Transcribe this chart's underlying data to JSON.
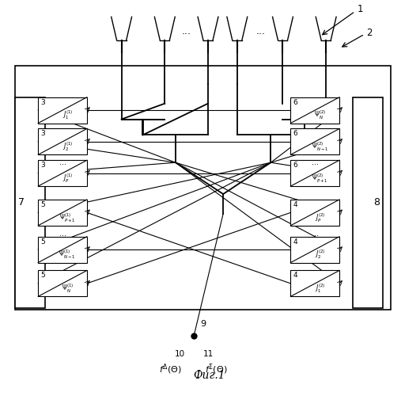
{
  "title": "Фиг.1",
  "fig_width": 5.31,
  "fig_height": 5.0,
  "bg_color": "#ffffff",
  "label1": "1",
  "label2": "2",
  "label7": "7",
  "label8": "8",
  "label9": "9",
  "label10": "10",
  "label11": "11",
  "left_blocks": [
    {
      "num": "3",
      "sub": "$J_1^{(1)}$"
    },
    {
      "num": "3",
      "sub": "$J_2^{(1)}$"
    },
    {
      "num": "3",
      "sub": "$J_P^{(1)}$"
    },
    {
      "num": "5",
      "sub": "$\\Psi_{P+1}^{(1)}$"
    },
    {
      "num": "5",
      "sub": "$\\Psi_{N-1}^{(1)}$"
    },
    {
      "num": "5",
      "sub": "$\\Psi_N^{(1)}$"
    }
  ],
  "right_blocks": [
    {
      "num": "6",
      "sub": "$\\Psi_N^{(2)}$"
    },
    {
      "num": "6",
      "sub": "$\\Psi_{N-1}^{(2)}$"
    },
    {
      "num": "6",
      "sub": "$\\Psi_{P+1}^{(2)}$"
    },
    {
      "num": "4",
      "sub": "$J_P^{(2)}$"
    },
    {
      "num": "4",
      "sub": "$J_2^{(2)}$"
    },
    {
      "num": "4",
      "sub": "$J_1^{(2)}$"
    }
  ]
}
